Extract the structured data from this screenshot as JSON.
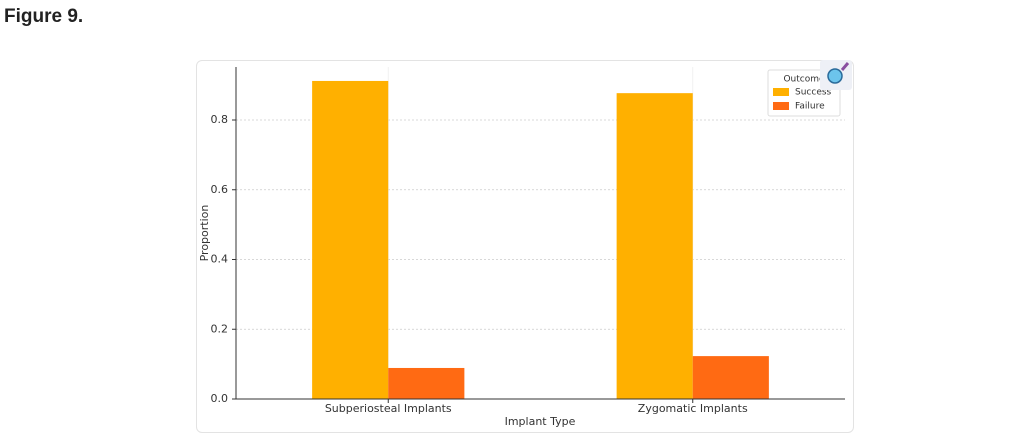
{
  "figure_label": "Figure 9.",
  "chart_data": {
    "type": "bar",
    "categories": [
      "Subperiosteal Implants",
      "Zygomatic Implants"
    ],
    "series": [
      {
        "name": "Success",
        "color": "#ffb000",
        "values": [
          0.912,
          0.877
        ]
      },
      {
        "name": "Failure",
        "color": "#ff6a13",
        "values": [
          0.089,
          0.123
        ]
      }
    ],
    "xlabel": "Implant Type",
    "ylabel": "Proportion",
    "legend_title": "Outcome",
    "legend": "upper right",
    "ylim": [
      0,
      0.952
    ],
    "yticks": [
      {
        "value": 0,
        "label": "0.0"
      },
      0.2,
      0.4,
      0.6,
      0.8
    ],
    "grid": true
  }
}
